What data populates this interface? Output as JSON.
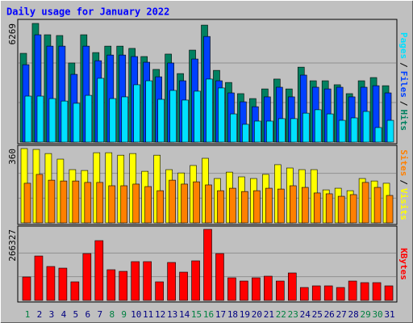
{
  "title": "Daily usage for January 2022",
  "separator": "/",
  "chart_data": [
    {
      "type": "bar",
      "ylim": [
        0,
        6269
      ],
      "yticks": [
        6269
      ],
      "series": [
        {
          "name": "Hits",
          "color": "#008060",
          "values": [
            4690,
            6269,
            5670,
            5630,
            4180,
            5670,
            4730,
            5070,
            5070,
            4950,
            4520,
            3840,
            4650,
            3620,
            4860,
            6180,
            3790,
            3150,
            2560,
            2300,
            2810,
            3330,
            2810,
            3960,
            3240,
            3240,
            3030,
            2560,
            3240,
            3410,
            2980
          ]
        },
        {
          "name": "Files",
          "color": "#0040ff",
          "values": [
            4090,
            5670,
            5070,
            5070,
            3580,
            5070,
            4300,
            4600,
            4600,
            4520,
            4220,
            3450,
            4180,
            3240,
            4390,
            5580,
            3240,
            2600,
            2130,
            1870,
            2390,
            2900,
            2390,
            3540,
            2900,
            2810,
            2900,
            2390,
            2900,
            2980,
            2600
          ]
        },
        {
          "name": "Pages",
          "color": "#00e0ff",
          "values": [
            2430,
            2430,
            2300,
            2170,
            2050,
            2470,
            3370,
            2300,
            2390,
            3030,
            3240,
            2260,
            2730,
            2220,
            2690,
            3330,
            2860,
            1490,
            940,
            1110,
            1110,
            1240,
            1240,
            1530,
            1710,
            1490,
            1150,
            1280,
            1620,
            770,
            1150
          ]
        }
      ]
    },
    {
      "type": "bar",
      "ylim": [
        0,
        360
      ],
      "yticks": [
        360
      ],
      "series": [
        {
          "name": "Visits",
          "color": "#ffff00",
          "values": [
            360,
            356,
            336,
            309,
            258,
            254,
            340,
            340,
            328,
            336,
            250,
            328,
            258,
            242,
            278,
            313,
            215,
            246,
            223,
            215,
            235,
            282,
            266,
            258,
            258,
            160,
            168,
            156,
            215,
            203,
            192
          ]
        },
        {
          "name": "Sites",
          "color": "#ff8000",
          "values": [
            192,
            235,
            207,
            203,
            203,
            196,
            196,
            180,
            180,
            188,
            176,
            156,
            207,
            188,
            199,
            184,
            156,
            168,
            152,
            156,
            168,
            164,
            180,
            172,
            145,
            141,
            129,
            137,
            196,
            172,
            133
          ]
        }
      ]
    },
    {
      "type": "bar",
      "ylim": [
        0,
        266327
      ],
      "yticks": [
        266327
      ],
      "categories": [
        "1",
        "2",
        "3",
        "4",
        "5",
        "6",
        "7",
        "8",
        "9",
        "10",
        "11",
        "12",
        "13",
        "14",
        "15",
        "16",
        "17",
        "18",
        "19",
        "20",
        "21",
        "22",
        "23",
        "24",
        "25",
        "26",
        "27",
        "28",
        "29",
        "30",
        "31"
      ],
      "category_colors": [
        "#008040",
        "#000080",
        "#000080",
        "#000080",
        "#000080",
        "#000080",
        "#000080",
        "#008040",
        "#008040",
        "#000080",
        "#000080",
        "#000080",
        "#000080",
        "#000080",
        "#008040",
        "#008040",
        "#000080",
        "#000080",
        "#000080",
        "#000080",
        "#000080",
        "#008040",
        "#008040",
        "#000080",
        "#000080",
        "#000080",
        "#000080",
        "#000080",
        "#008040",
        "#008040",
        "#000080"
      ],
      "series": [
        {
          "name": "KBytes",
          "color": "#ff0000",
          "values": [
            87800,
            166400,
            127100,
            121000,
            69600,
            175500,
            224000,
            115000,
            108900,
            145300,
            145300,
            69600,
            142200,
            105900,
            148300,
            266327,
            175500,
            84700,
            72600,
            84700,
            90800,
            72600,
            102900,
            48400,
            54500,
            54500,
            48400,
            72600,
            66600,
            66600,
            54500
          ]
        }
      ]
    }
  ]
}
